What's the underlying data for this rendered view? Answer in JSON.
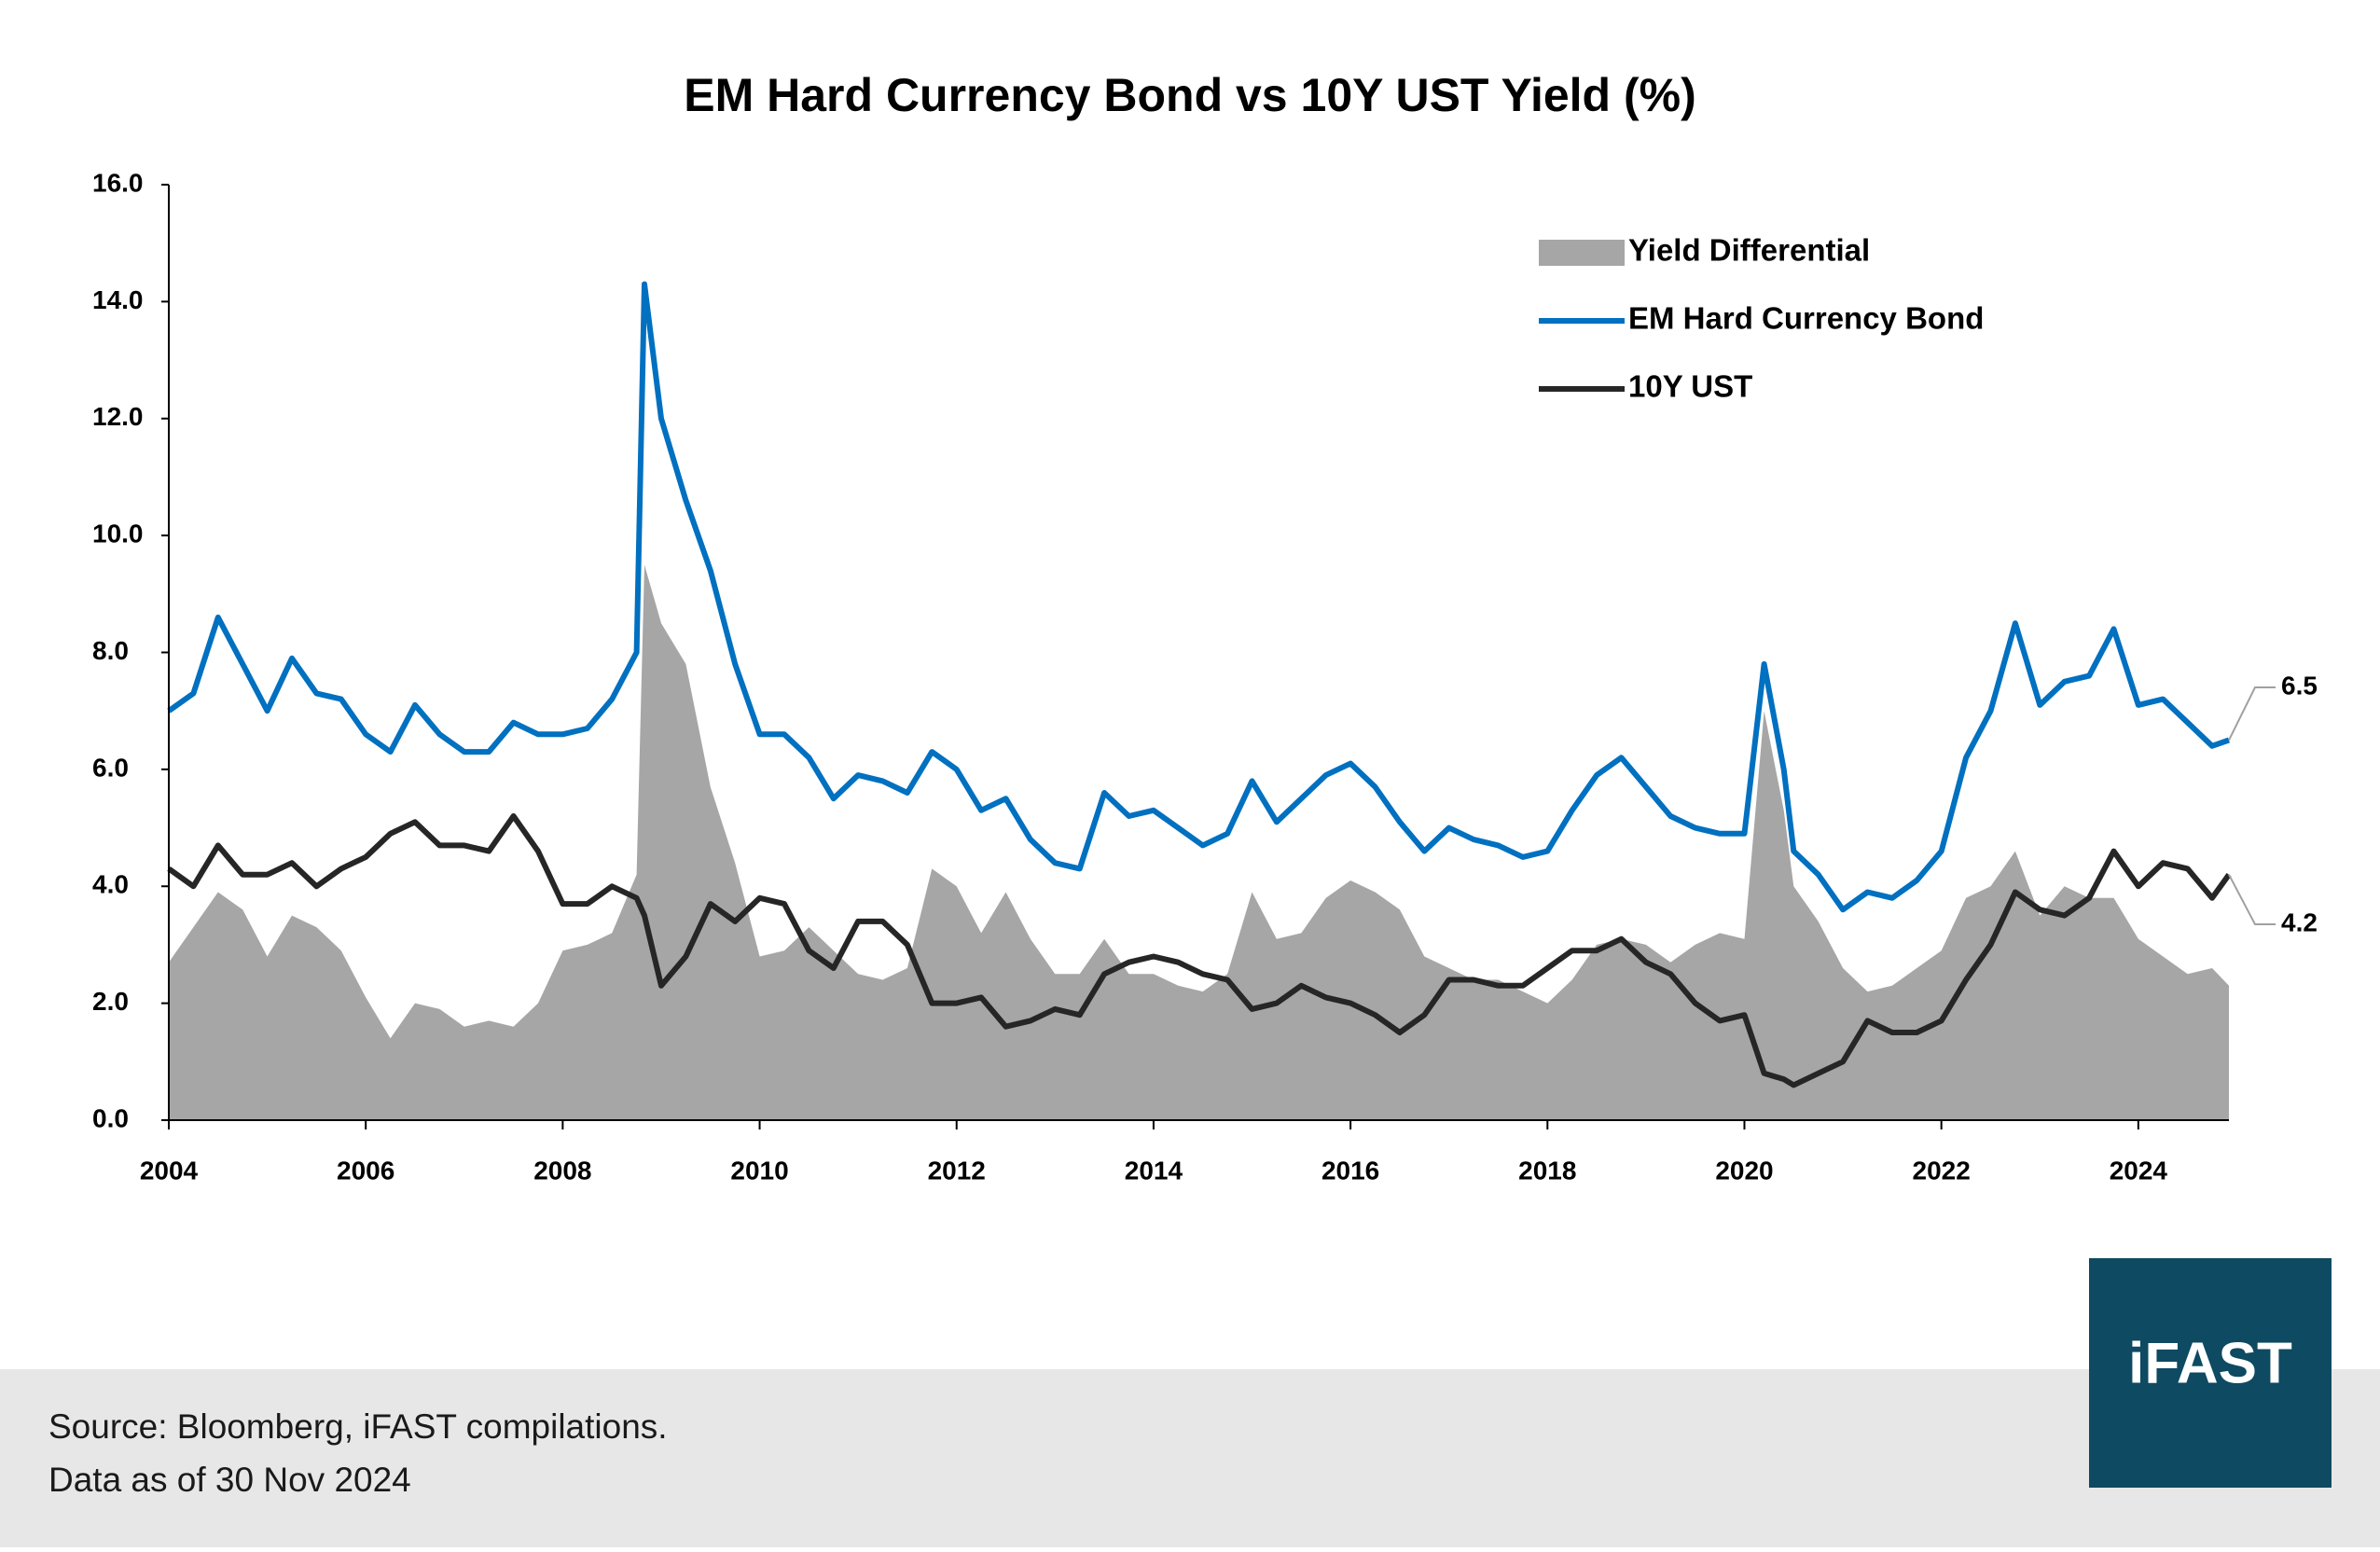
{
  "chart_data": {
    "type": "line",
    "title": "EM Hard Currency Bond vs 10Y UST Yield (%)",
    "x": [
      2004.0,
      2004.25,
      2004.5,
      2004.75,
      2005.0,
      2005.25,
      2005.5,
      2005.75,
      2006.0,
      2006.25,
      2006.5,
      2006.75,
      2007.0,
      2007.25,
      2007.5,
      2007.75,
      2008.0,
      2008.25,
      2008.5,
      2008.75,
      2008.83,
      2009.0,
      2009.25,
      2009.5,
      2009.75,
      2010.0,
      2010.25,
      2010.5,
      2010.75,
      2011.0,
      2011.25,
      2011.5,
      2011.75,
      2012.0,
      2012.25,
      2012.5,
      2012.75,
      2013.0,
      2013.25,
      2013.5,
      2013.75,
      2014.0,
      2014.25,
      2014.5,
      2014.75,
      2015.0,
      2015.25,
      2015.5,
      2015.75,
      2016.0,
      2016.25,
      2016.5,
      2016.75,
      2017.0,
      2017.25,
      2017.5,
      2017.75,
      2018.0,
      2018.25,
      2018.5,
      2018.75,
      2019.0,
      2019.25,
      2019.5,
      2019.75,
      2020.0,
      2020.2,
      2020.4,
      2020.5,
      2020.75,
      2021.0,
      2021.25,
      2021.5,
      2021.75,
      2022.0,
      2022.25,
      2022.5,
      2022.75,
      2023.0,
      2023.25,
      2023.5,
      2023.75,
      2024.0,
      2024.25,
      2024.5,
      2024.75,
      2024.92
    ],
    "series": [
      {
        "name": "Yield Differential",
        "kind": "area",
        "color": "#a6a6a6",
        "values": [
          2.7,
          3.3,
          3.9,
          3.6,
          2.8,
          3.5,
          3.3,
          2.9,
          2.1,
          1.4,
          2.0,
          1.9,
          1.6,
          1.7,
          1.6,
          2.0,
          2.9,
          3.0,
          3.2,
          4.2,
          9.5,
          8.5,
          7.8,
          5.7,
          4.4,
          2.8,
          2.9,
          3.3,
          2.9,
          2.5,
          2.4,
          2.6,
          4.3,
          4.0,
          3.2,
          3.9,
          3.1,
          2.5,
          2.5,
          3.1,
          2.5,
          2.5,
          2.3,
          2.2,
          2.5,
          3.9,
          3.1,
          3.2,
          3.8,
          4.1,
          3.9,
          3.6,
          2.8,
          2.6,
          2.4,
          2.4,
          2.2,
          2.0,
          2.4,
          3.0,
          3.1,
          3.0,
          2.7,
          3.0,
          3.2,
          3.1,
          7.0,
          5.3,
          4.0,
          3.4,
          2.6,
          2.2,
          2.3,
          2.6,
          2.9,
          3.8,
          4.0,
          4.6,
          3.5,
          4.0,
          3.8,
          3.8,
          3.1,
          2.8,
          2.5,
          2.6,
          2.3
        ]
      },
      {
        "name": "EM Hard Currency Bond",
        "kind": "line",
        "color": "#0070c0",
        "end_label": 6.5,
        "values": [
          7.0,
          7.3,
          8.6,
          7.8,
          7.0,
          7.9,
          7.3,
          7.2,
          6.6,
          6.3,
          7.1,
          6.6,
          6.3,
          6.3,
          6.8,
          6.6,
          6.6,
          6.7,
          7.2,
          8.0,
          14.3,
          12.0,
          10.6,
          9.4,
          7.8,
          6.6,
          6.6,
          6.2,
          5.5,
          5.9,
          5.8,
          5.6,
          6.3,
          6.0,
          5.3,
          5.5,
          4.8,
          4.4,
          4.3,
          5.6,
          5.2,
          5.3,
          5.0,
          4.7,
          4.9,
          5.8,
          5.1,
          5.5,
          5.9,
          6.1,
          5.7,
          5.1,
          4.6,
          5.0,
          4.8,
          4.7,
          4.5,
          4.6,
          5.3,
          5.9,
          6.2,
          5.7,
          5.2,
          5.0,
          4.9,
          4.9,
          7.8,
          6.0,
          4.6,
          4.2,
          3.6,
          3.9,
          3.8,
          4.1,
          4.6,
          6.2,
          7.0,
          8.5,
          7.1,
          7.5,
          7.6,
          8.4,
          7.1,
          7.2,
          6.8,
          6.4,
          6.5
        ]
      },
      {
        "name": "10Y UST",
        "kind": "line",
        "color": "#262626",
        "end_label": 4.2,
        "values": [
          4.3,
          4.0,
          4.7,
          4.2,
          4.2,
          4.4,
          4.0,
          4.3,
          4.5,
          4.9,
          5.1,
          4.7,
          4.7,
          4.6,
          5.2,
          4.6,
          3.7,
          3.7,
          4.0,
          3.8,
          3.5,
          2.3,
          2.8,
          3.7,
          3.4,
          3.8,
          3.7,
          2.9,
          2.6,
          3.4,
          3.4,
          3.0,
          2.0,
          2.0,
          2.1,
          1.6,
          1.7,
          1.9,
          1.8,
          2.5,
          2.7,
          2.8,
          2.7,
          2.5,
          2.4,
          1.9,
          2.0,
          2.3,
          2.1,
          2.0,
          1.8,
          1.5,
          1.8,
          2.4,
          2.4,
          2.3,
          2.3,
          2.6,
          2.9,
          2.9,
          3.1,
          2.7,
          2.5,
          2.0,
          1.7,
          1.8,
          0.8,
          0.7,
          0.6,
          0.8,
          1.0,
          1.7,
          1.5,
          1.5,
          1.7,
          2.4,
          3.0,
          3.9,
          3.6,
          3.5,
          3.8,
          4.6,
          4.0,
          4.4,
          4.3,
          3.8,
          4.2
        ]
      }
    ],
    "xlim": [
      2004,
      2024.92
    ],
    "xticks": [
      2004,
      2006,
      2008,
      2010,
      2012,
      2014,
      2016,
      2018,
      2020,
      2022,
      2024
    ],
    "ylim": [
      0,
      16
    ],
    "yticks": [
      {
        "value": 0,
        "label": "0.0"
      },
      {
        "value": 2,
        "label": "2.0"
      },
      {
        "value": 4,
        "label": "4.0"
      },
      {
        "value": 6,
        "label": "6.0"
      },
      {
        "value": 8,
        "label": "8.0"
      },
      {
        "value": 10,
        "label": "10.0"
      },
      {
        "value": 12,
        "label": "12.0"
      },
      {
        "value": 14,
        "label": "14.0"
      },
      {
        "value": 16,
        "label": "16.0"
      }
    ],
    "grid": false,
    "legend": "upper right"
  },
  "footer": {
    "source": "Source: Bloomberg, iFAST compilations.",
    "note": "Data as of 30 Nov 2024",
    "logo": "iFAST"
  }
}
